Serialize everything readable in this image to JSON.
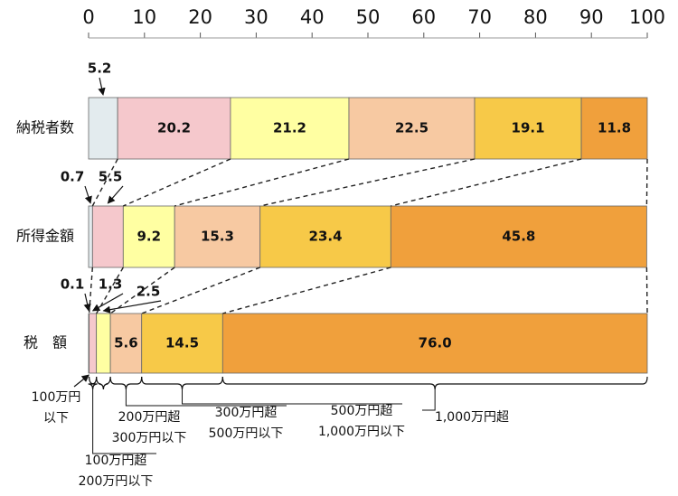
{
  "chart_data": {
    "type": "bar",
    "orientation": "horizontal",
    "stacked": true,
    "categories": [
      "納税者数",
      "所得金額",
      "税　額"
    ],
    "xlim": [
      0,
      100
    ],
    "xticks": [
      0,
      10,
      20,
      30,
      40,
      50,
      60,
      70,
      80,
      90,
      100
    ],
    "series": [
      {
        "name": "100万円\n以下",
        "color": "#e3ebee",
        "values": [
          5.2,
          0.7,
          0.1
        ]
      },
      {
        "name": "100万円超\n200万円以下",
        "color": "#f5c8cc",
        "values": [
          20.2,
          5.5,
          1.3
        ]
      },
      {
        "name": "200万円超\n300万円以下",
        "color": "#ffffa2",
        "values": [
          21.2,
          9.2,
          2.5
        ]
      },
      {
        "name": "300万円超\n500万円以下",
        "color": "#f7c9a2",
        "values": [
          22.5,
          15.3,
          5.6
        ]
      },
      {
        "name": "500万円超\n1,000万円以下",
        "color": "#f7c948",
        "values": [
          19.1,
          23.4,
          14.5
        ]
      },
      {
        "name": "1,000万円超",
        "color": "#f0a03c",
        "values": [
          11.8,
          45.8,
          76.0
        ],
        "value_labels": [
          "11.8",
          "45.8",
          "76.0"
        ]
      }
    ]
  }
}
